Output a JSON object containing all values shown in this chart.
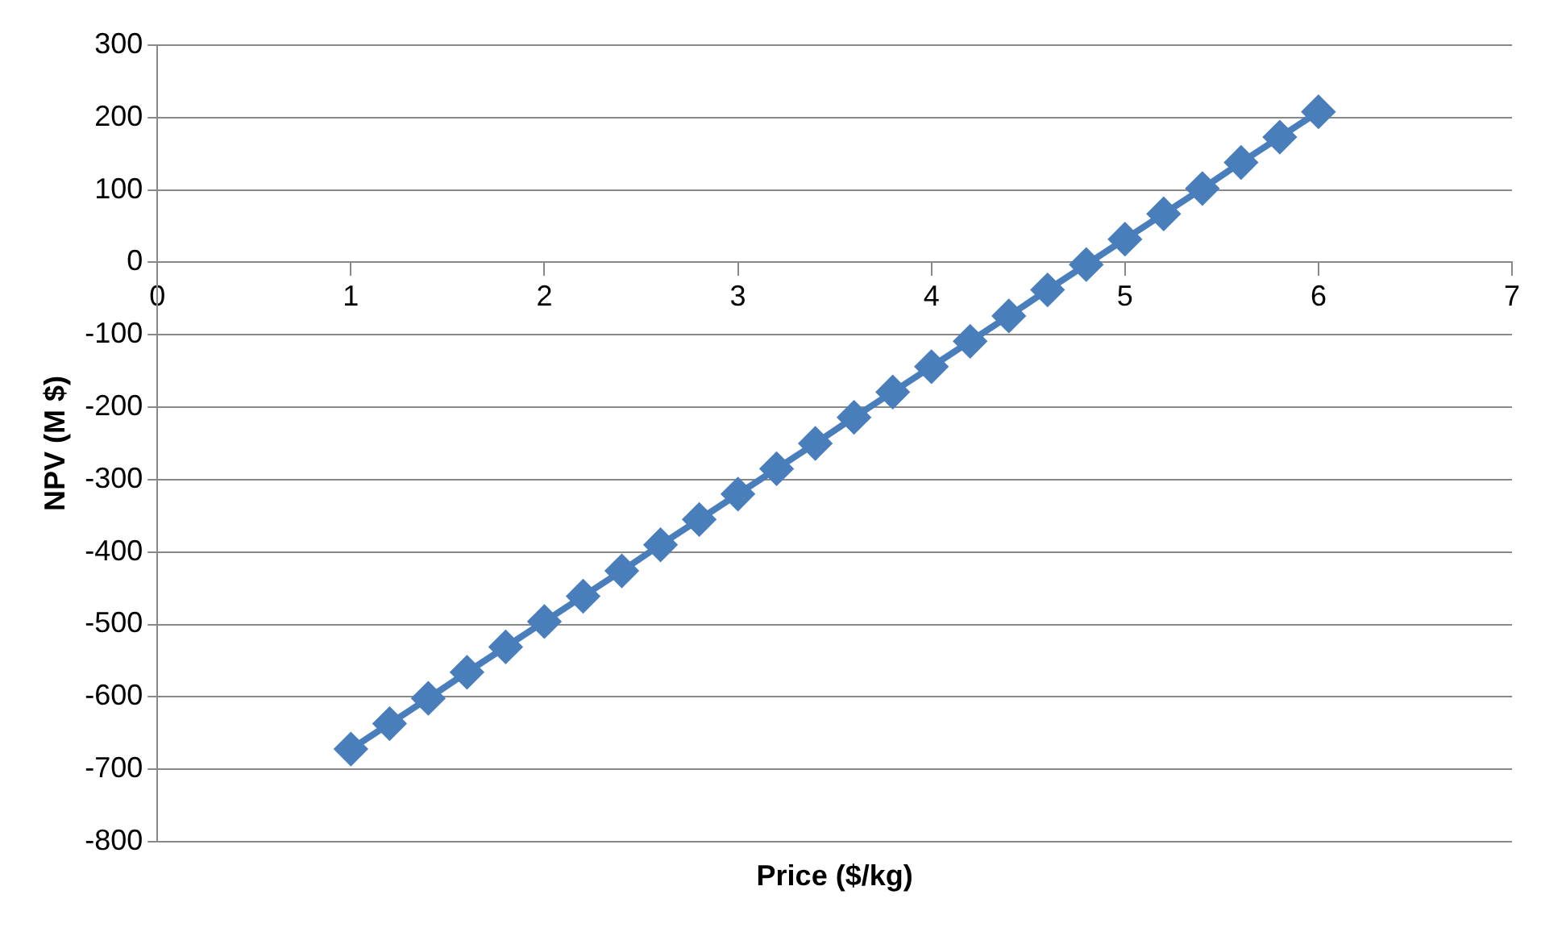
{
  "chart_data": {
    "type": "line",
    "xlabel": "Price ($/kg)",
    "ylabel": "NPV (M $)",
    "x": [
      1,
      1.2,
      1.4,
      1.6,
      1.8,
      2,
      2.2,
      2.4,
      2.6,
      2.8,
      3,
      3.2,
      3.4,
      3.6,
      3.8,
      4,
      4.2,
      4.4,
      4.6,
      4.8,
      5,
      5.2,
      5.4,
      5.6,
      5.8,
      6
    ],
    "series": [
      {
        "color": "#4a7ebb",
        "values": [
          -672,
          -637,
          -602,
          -566,
          -531,
          -496,
          -461,
          -426,
          -390,
          -355,
          -320,
          -285,
          -250,
          -214,
          -179,
          -144,
          -109,
          -74,
          -38,
          -3,
          32,
          67,
          102,
          138,
          173,
          208
        ]
      }
    ],
    "xlim": [
      0,
      7
    ],
    "xticks": [
      0,
      1,
      2,
      3,
      4,
      5,
      6,
      7
    ],
    "ylim": [
      -800,
      300
    ],
    "yticks": [
      -800,
      -700,
      -600,
      -500,
      -400,
      -300,
      -200,
      -100,
      0,
      100,
      200,
      300
    ],
    "grid": "y",
    "legend": false,
    "marker": "diamond",
    "line_style": "solid"
  }
}
